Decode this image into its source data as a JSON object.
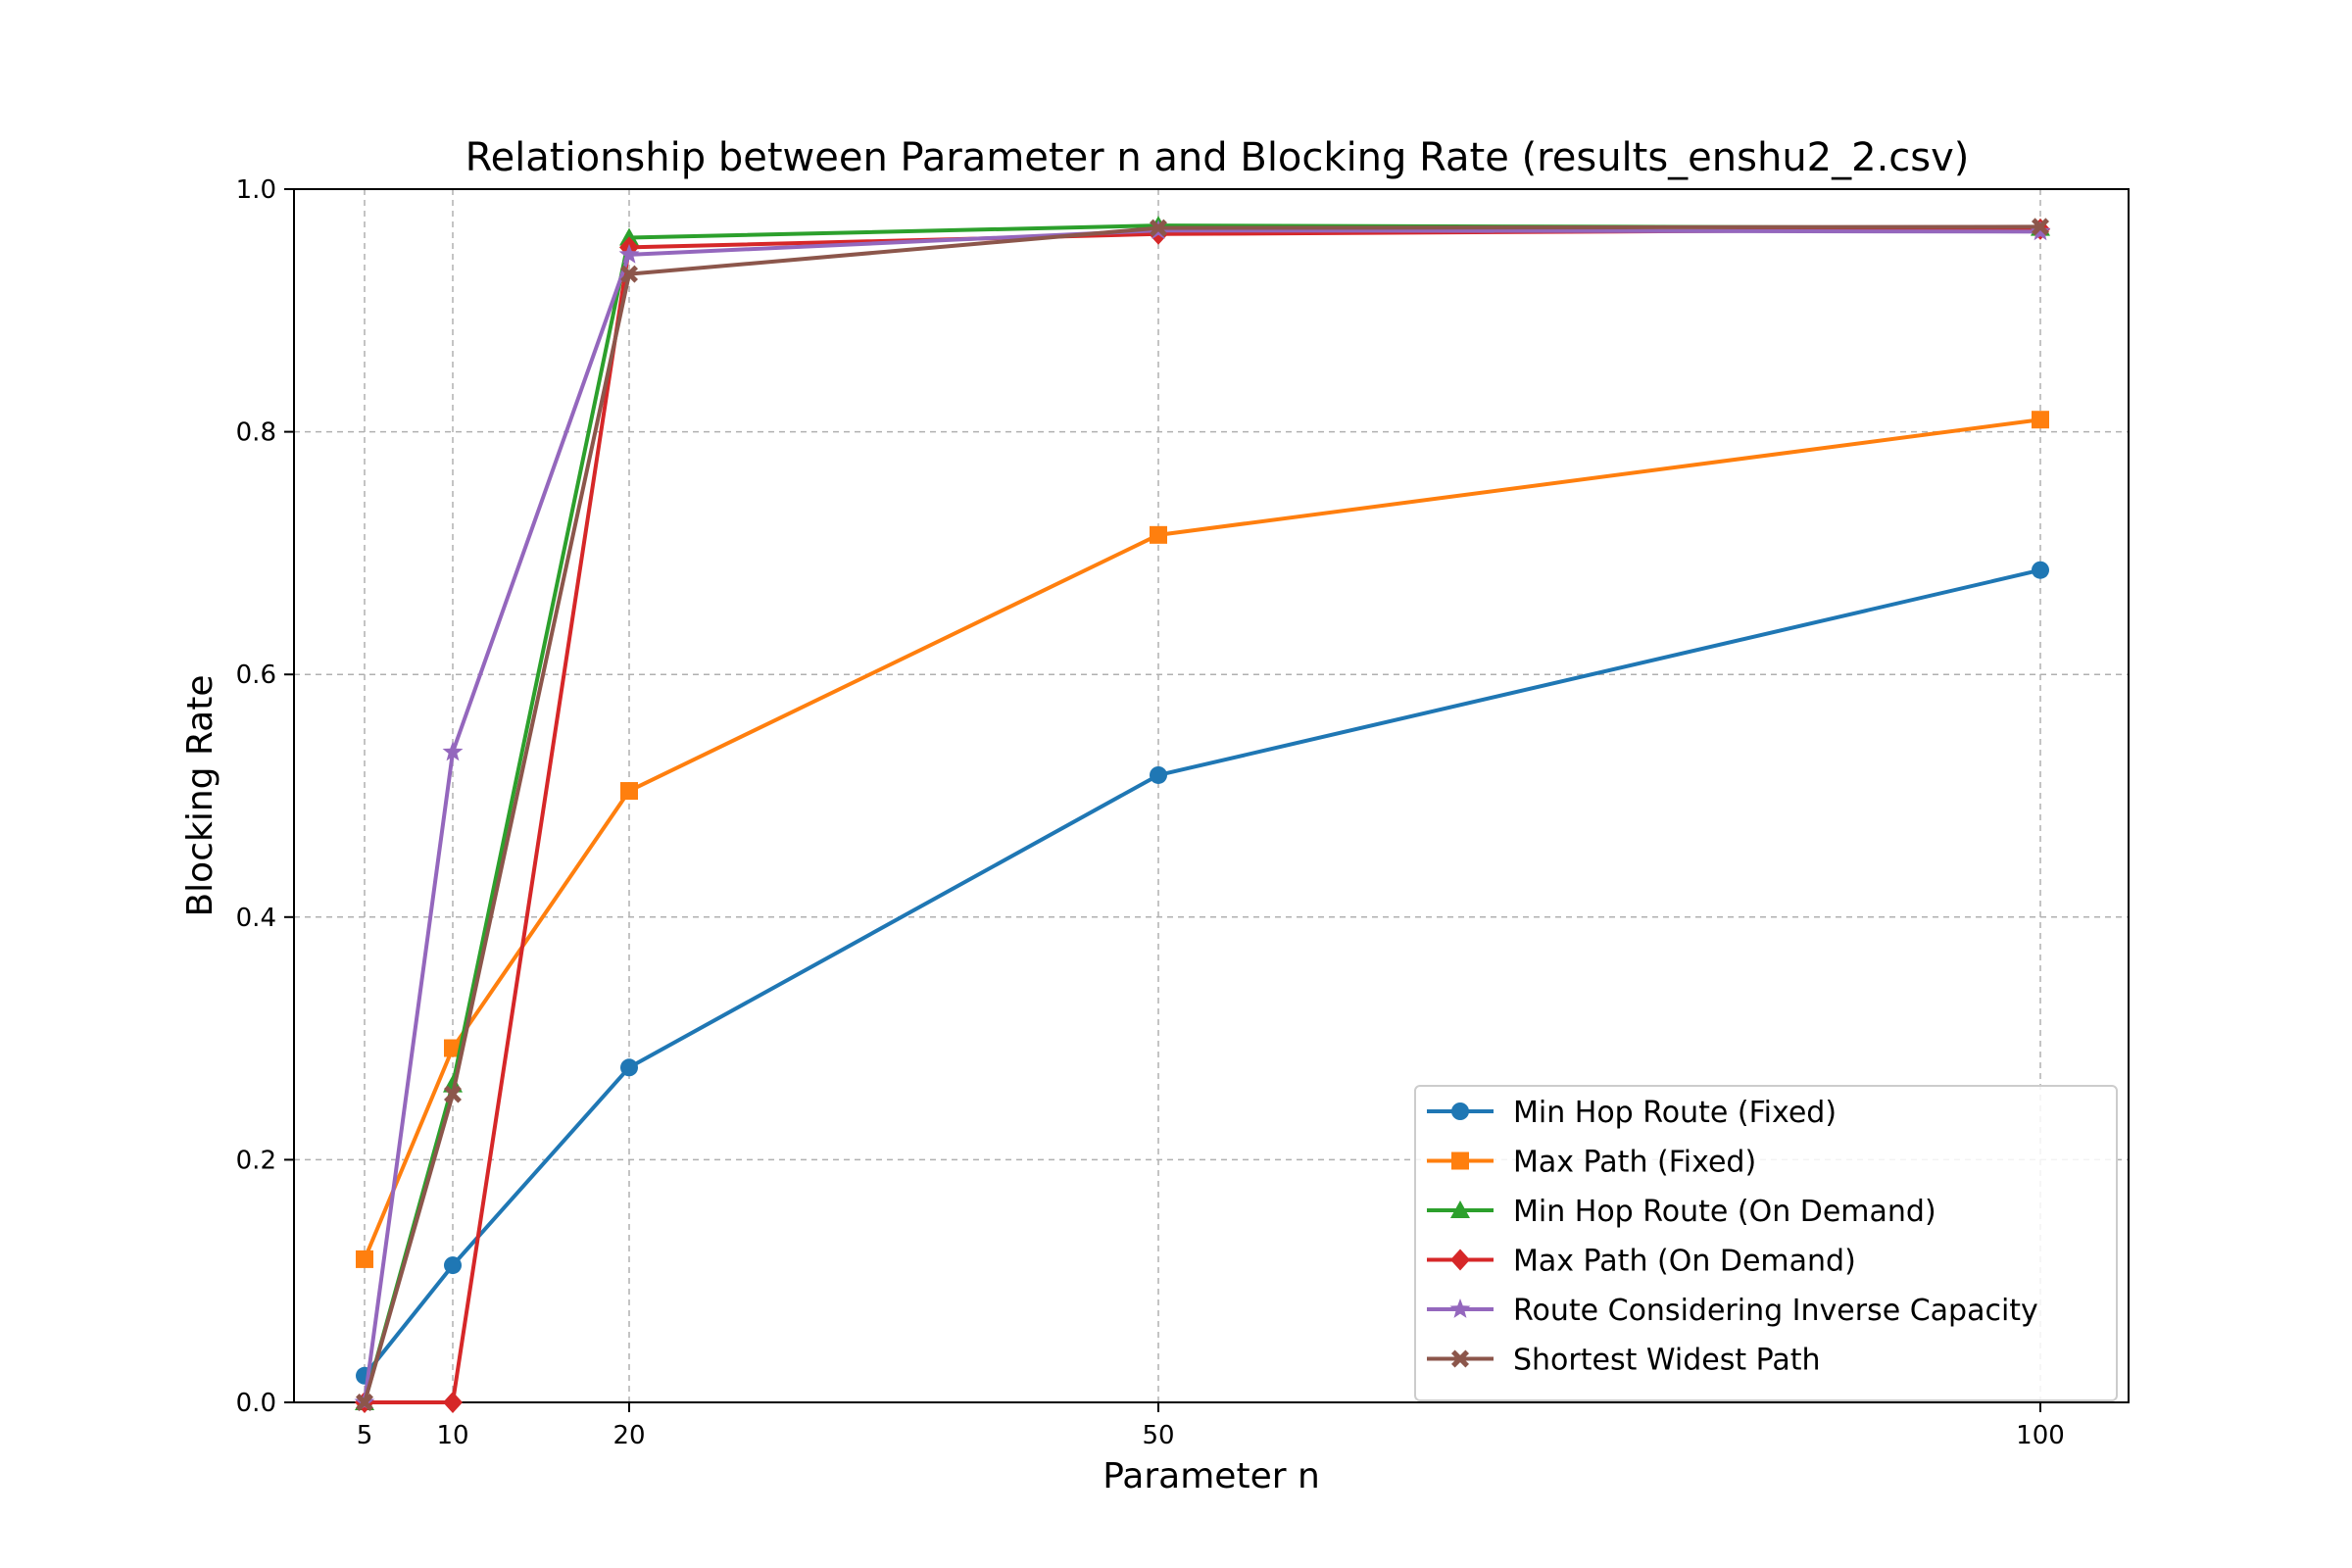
{
  "chart_data": {
    "type": "line",
    "title": "Relationship between Parameter n and Blocking Rate (results_enshu2_2.csv)",
    "xlabel": "Parameter n",
    "ylabel": "Blocking Rate",
    "x": [
      5,
      10,
      20,
      50,
      100
    ],
    "x_ticks": [
      "5",
      "10",
      "20",
      "50",
      "100"
    ],
    "xlim": [
      1,
      105
    ],
    "ylim": [
      0.0,
      1.0
    ],
    "y_ticks": [
      "0.0",
      "0.2",
      "0.4",
      "0.6",
      "0.8",
      "1.0"
    ],
    "grid": true,
    "legend_position": "bottom-right",
    "series": [
      {
        "name": "Min Hop Route (Fixed)",
        "color": "#1f77b4",
        "marker": "circle",
        "values": [
          0.022,
          0.113,
          0.276,
          0.517,
          0.686
        ]
      },
      {
        "name": "Max Path (Fixed)",
        "color": "#ff7f0e",
        "marker": "square",
        "values": [
          0.118,
          0.292,
          0.504,
          0.715,
          0.81
        ]
      },
      {
        "name": "Min Hop Route (On Demand)",
        "color": "#2ca02c",
        "marker": "triangle",
        "values": [
          0.0,
          0.262,
          0.96,
          0.97,
          0.968
        ]
      },
      {
        "name": "Max Path (On Demand)",
        "color": "#d62728",
        "marker": "diamond",
        "values": [
          0.0,
          0.0,
          0.952,
          0.963,
          0.967
        ]
      },
      {
        "name": "Route Considering Inverse Capacity",
        "color": "#9467bd",
        "marker": "star",
        "values": [
          0.0,
          0.536,
          0.946,
          0.966,
          0.965
        ]
      },
      {
        "name": "Shortest Widest Path",
        "color": "#8c564b",
        "marker": "cross",
        "values": [
          0.0,
          0.254,
          0.93,
          0.968,
          0.969
        ]
      }
    ]
  }
}
